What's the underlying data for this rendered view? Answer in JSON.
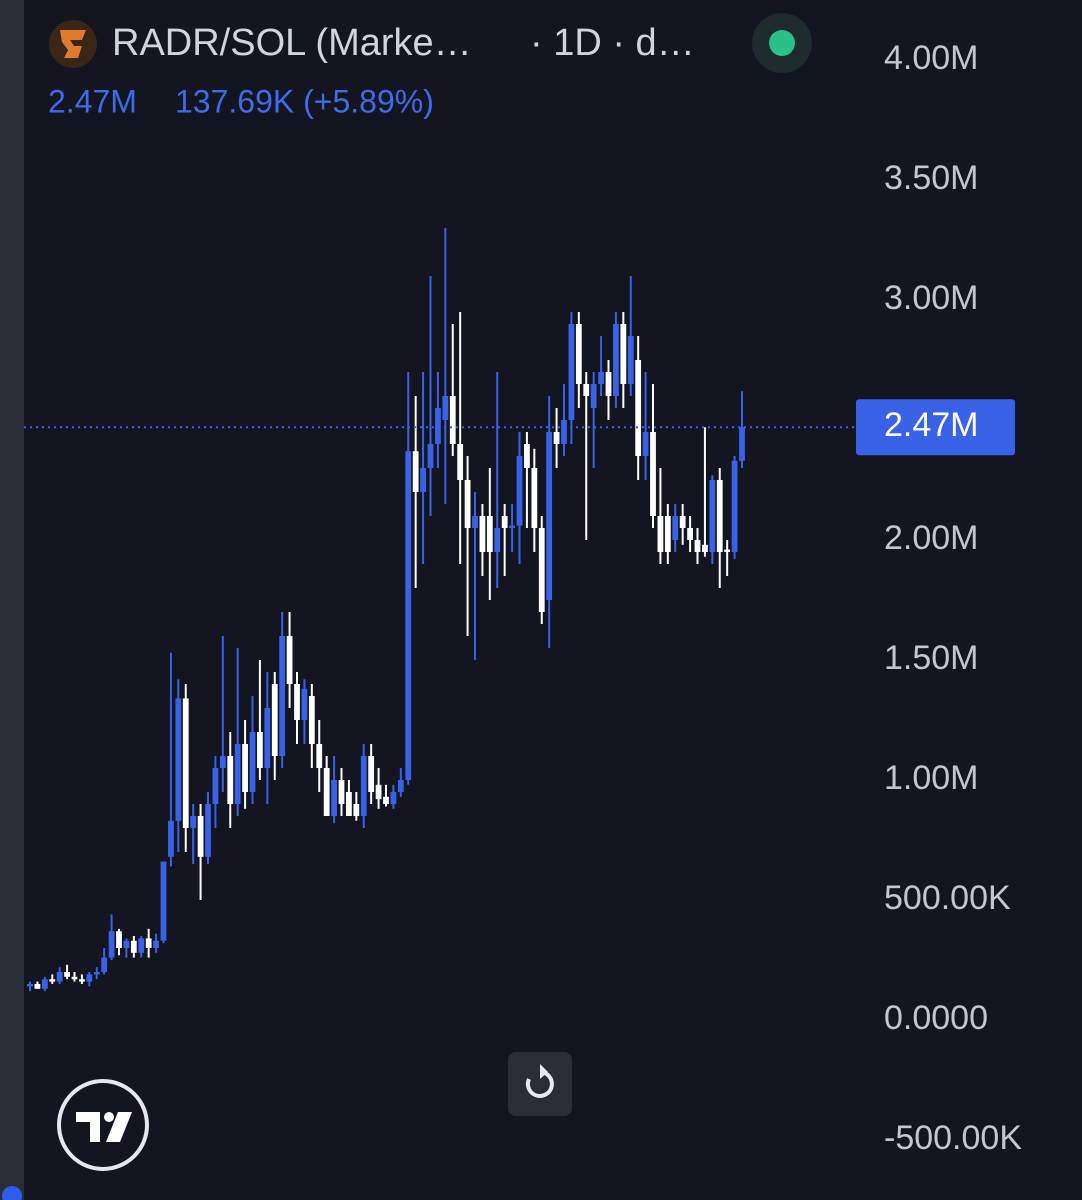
{
  "header": {
    "title": "RADR/SOL (Marke…",
    "meta": "· 1D · d…",
    "legend_value": "2.47M",
    "legend_change": "137.69K (+5.89%)"
  },
  "chart_data": {
    "type": "candlestick",
    "up_color": "#3a62e6",
    "down_color": "#ffffff",
    "ylim": [
      -750000,
      4250000
    ],
    "yticks": [
      {
        "value": 4000000,
        "label": "4.00M"
      },
      {
        "value": 3500000,
        "label": "3.50M"
      },
      {
        "value": 3000000,
        "label": "3.00M"
      },
      {
        "value": 2000000,
        "label": "2.00M"
      },
      {
        "value": 1500000,
        "label": "1.50M"
      },
      {
        "value": 1000000,
        "label": "1.00M"
      },
      {
        "value": 500000,
        "label": "500.00K"
      },
      {
        "value": 0,
        "label": "0.0000"
      },
      {
        "value": -500000,
        "label": "-500.00K"
      }
    ],
    "last_price": {
      "value": 2470000,
      "label": "2.47M"
    },
    "candles": [
      [
        140000,
        160000,
        120000,
        150000
      ],
      [
        150000,
        160000,
        130000,
        130000
      ],
      [
        130000,
        180000,
        120000,
        170000
      ],
      [
        170000,
        190000,
        150000,
        160000
      ],
      [
        160000,
        220000,
        150000,
        200000
      ],
      [
        200000,
        230000,
        170000,
        180000
      ],
      [
        180000,
        200000,
        160000,
        170000
      ],
      [
        170000,
        190000,
        150000,
        160000
      ],
      [
        160000,
        200000,
        140000,
        190000
      ],
      [
        190000,
        220000,
        170000,
        200000
      ],
      [
        200000,
        300000,
        190000,
        260000
      ],
      [
        260000,
        440000,
        250000,
        370000
      ],
      [
        370000,
        380000,
        270000,
        300000
      ],
      [
        300000,
        340000,
        260000,
        330000
      ],
      [
        330000,
        350000,
        260000,
        280000
      ],
      [
        280000,
        350000,
        260000,
        340000
      ],
      [
        340000,
        380000,
        260000,
        300000
      ],
      [
        300000,
        360000,
        280000,
        330000
      ],
      [
        330000,
        660000,
        320000,
        660000
      ],
      [
        680000,
        1530000,
        640000,
        830000
      ],
      [
        830000,
        1420000,
        700000,
        1340000
      ],
      [
        1340000,
        1400000,
        700000,
        800000
      ],
      [
        800000,
        900000,
        650000,
        850000
      ],
      [
        850000,
        900000,
        500000,
        680000
      ],
      [
        680000,
        950000,
        650000,
        900000
      ],
      [
        900000,
        1100000,
        800000,
        1050000
      ],
      [
        1050000,
        1600000,
        950000,
        1100000
      ],
      [
        1100000,
        1200000,
        800000,
        900000
      ],
      [
        900000,
        1550000,
        850000,
        1150000
      ],
      [
        1150000,
        1250000,
        880000,
        950000
      ],
      [
        950000,
        1350000,
        900000,
        1200000
      ],
      [
        1200000,
        1500000,
        1000000,
        1050000
      ],
      [
        1050000,
        1450000,
        900000,
        1300000
      ],
      [
        1400000,
        1450000,
        1000000,
        1100000
      ],
      [
        1100000,
        1700000,
        1050000,
        1600000
      ],
      [
        1600000,
        1700000,
        1300000,
        1400000
      ],
      [
        1400000,
        1450000,
        1150000,
        1250000
      ],
      [
        1250000,
        1420000,
        1150000,
        1380000
      ],
      [
        1350000,
        1400000,
        1050000,
        1150000
      ],
      [
        1150000,
        1250000,
        950000,
        1050000
      ],
      [
        1050000,
        1100000,
        850000,
        850000
      ],
      [
        850000,
        1100000,
        820000,
        1000000
      ],
      [
        1000000,
        1050000,
        850000,
        900000
      ],
      [
        950000,
        1000000,
        850000,
        850000
      ],
      [
        900000,
        950000,
        830000,
        850000
      ],
      [
        850000,
        1150000,
        800000,
        1100000
      ],
      [
        1100000,
        1150000,
        900000,
        950000
      ],
      [
        980000,
        1050000,
        880000,
        920000
      ],
      [
        930000,
        980000,
        890000,
        900000
      ],
      [
        900000,
        980000,
        880000,
        950000
      ],
      [
        950000,
        1050000,
        930000,
        1000000
      ],
      [
        1000000,
        2700000,
        980000,
        2370000
      ],
      [
        2370000,
        2600000,
        1800000,
        2200000
      ],
      [
        2200000,
        2700000,
        1900000,
        2300000
      ],
      [
        2300000,
        3100000,
        2100000,
        2400000
      ],
      [
        2400000,
        2700000,
        2300000,
        2550000
      ],
      [
        2500000,
        3300000,
        2150000,
        2600000
      ],
      [
        2600000,
        2900000,
        2350000,
        2400000
      ],
      [
        2400000,
        2950000,
        1900000,
        2250000
      ],
      [
        2250000,
        2350000,
        1600000,
        2050000
      ],
      [
        2050000,
        2200000,
        1500000,
        2100000
      ],
      [
        2100000,
        2150000,
        1850000,
        1950000
      ],
      [
        2100000,
        2300000,
        1750000,
        1950000
      ],
      [
        1950000,
        2700000,
        1800000,
        2050000
      ],
      [
        2100000,
        2150000,
        1850000,
        2050000
      ],
      [
        2050000,
        2150000,
        1950000,
        2060000
      ],
      [
        2060000,
        2450000,
        1900000,
        2350000
      ],
      [
        2400000,
        2450000,
        2050000,
        2300000
      ],
      [
        2300000,
        2380000,
        1950000,
        2050000
      ],
      [
        2050000,
        2100000,
        1650000,
        1700000
      ],
      [
        1750000,
        2600000,
        1550000,
        2450000
      ],
      [
        2450000,
        2550000,
        2300000,
        2400000
      ],
      [
        2400000,
        2650000,
        2350000,
        2500000
      ],
      [
        2500000,
        2950000,
        2400000,
        2900000
      ],
      [
        2900000,
        2950000,
        2550000,
        2650000
      ],
      [
        2650000,
        2700000,
        2000000,
        2600000
      ],
      [
        2550000,
        2700000,
        2300000,
        2650000
      ],
      [
        2650000,
        2850000,
        2600000,
        2700000
      ],
      [
        2700000,
        2750000,
        2500000,
        2600000
      ],
      [
        2600000,
        2950000,
        2550000,
        2900000
      ],
      [
        2900000,
        2950000,
        2550000,
        2650000
      ],
      [
        2650000,
        3100000,
        2600000,
        2850000
      ],
      [
        2750000,
        2850000,
        2250000,
        2350000
      ],
      [
        2350000,
        2700000,
        2250000,
        2450000
      ],
      [
        2450000,
        2650000,
        2050000,
        2100000
      ],
      [
        2100000,
        2300000,
        1900000,
        1950000
      ],
      [
        2100000,
        2150000,
        1900000,
        1950000
      ],
      [
        2000000,
        2150000,
        1950000,
        2100000
      ],
      [
        2100000,
        2150000,
        1980000,
        2050000
      ],
      [
        2050000,
        2100000,
        1950000,
        2000000
      ],
      [
        2000000,
        2050000,
        1900000,
        1950000
      ],
      [
        1980000,
        2470000,
        1930000,
        1950000
      ],
      [
        1950000,
        2270000,
        1900000,
        2250000
      ],
      [
        2250000,
        2300000,
        1800000,
        1950000
      ],
      [
        1960000,
        2000000,
        1850000,
        1950000
      ],
      [
        1950000,
        2350000,
        1920000,
        2330000
      ],
      [
        2330000,
        2620000,
        2300000,
        2470000
      ]
    ]
  }
}
